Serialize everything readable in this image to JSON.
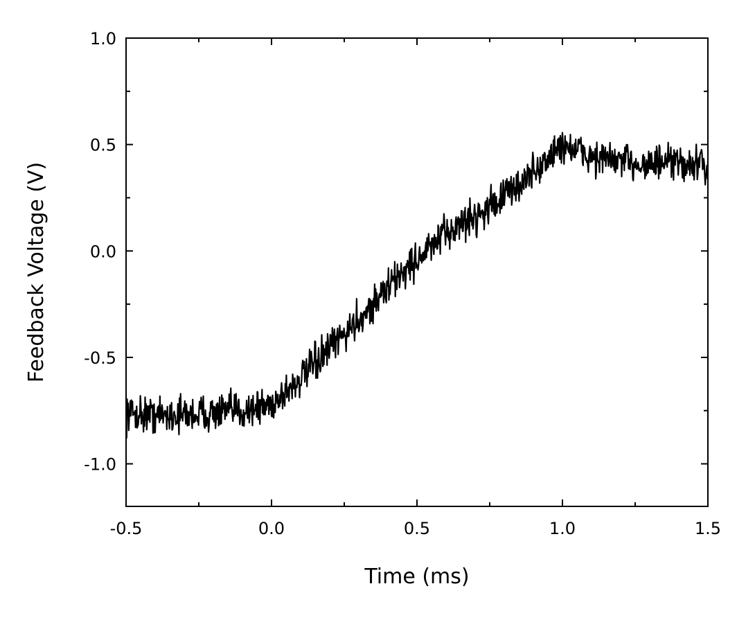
{
  "chart_data": {
    "type": "line",
    "title": "",
    "xlabel": "Time (ms)",
    "ylabel": "Feedback Voltage (V)",
    "xlim": [
      -0.5,
      1.5
    ],
    "ylim": [
      -1.2,
      1.0
    ],
    "xticks": [
      -0.5,
      0.0,
      0.5,
      1.0,
      1.5
    ],
    "xtick_labels": [
      "-0.5",
      "0.0",
      "0.5",
      "1.0",
      "1.5"
    ],
    "yticks": [
      -1.0,
      -0.5,
      0.0,
      0.5,
      1.0
    ],
    "ytick_labels": [
      "-1.0",
      "-0.5",
      "0.0",
      "0.5",
      "1.0"
    ],
    "grid": false,
    "legend": "none",
    "series": [
      {
        "color": "#000000",
        "x": [
          -0.5,
          -0.4,
          -0.3,
          -0.2,
          -0.1,
          0.0,
          0.05,
          0.1,
          0.15,
          0.2,
          0.25,
          0.3,
          0.35,
          0.4,
          0.45,
          0.5,
          0.55,
          0.6,
          0.65,
          0.7,
          0.75,
          0.8,
          0.85,
          0.9,
          0.95,
          1.0,
          1.05,
          1.1,
          1.2,
          1.3,
          1.4,
          1.5
        ],
        "y": [
          -0.76,
          -0.77,
          -0.77,
          -0.76,
          -0.75,
          -0.72,
          -0.66,
          -0.6,
          -0.53,
          -0.46,
          -0.39,
          -0.32,
          -0.25,
          -0.17,
          -0.1,
          -0.04,
          0.02,
          0.08,
          0.13,
          0.16,
          0.21,
          0.26,
          0.31,
          0.37,
          0.43,
          0.5,
          0.47,
          0.44,
          0.42,
          0.41,
          0.41,
          0.4
        ],
        "noise_amplitude": 0.06
      }
    ]
  }
}
